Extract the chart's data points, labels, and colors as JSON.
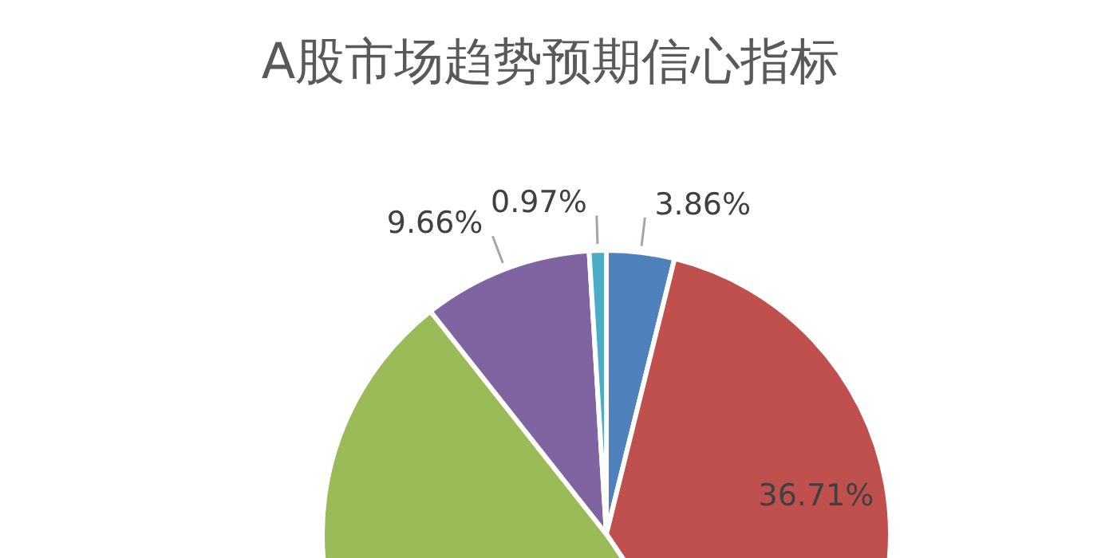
{
  "chart_data": {
    "type": "pie",
    "title": "A股市场趋势预期信心指标",
    "categories": [
      null,
      null,
      null,
      null,
      null
    ],
    "values": [
      3.86,
      36.71,
      48.8,
      9.66,
      0.97
    ],
    "value_labels": [
      "3.86%",
      "36.71%",
      null,
      "9.66%",
      "0.97%"
    ],
    "colors": [
      "#4f81bd",
      "#c0504d",
      "#9bbb59",
      "#8064a2",
      "#4bacc6"
    ]
  }
}
